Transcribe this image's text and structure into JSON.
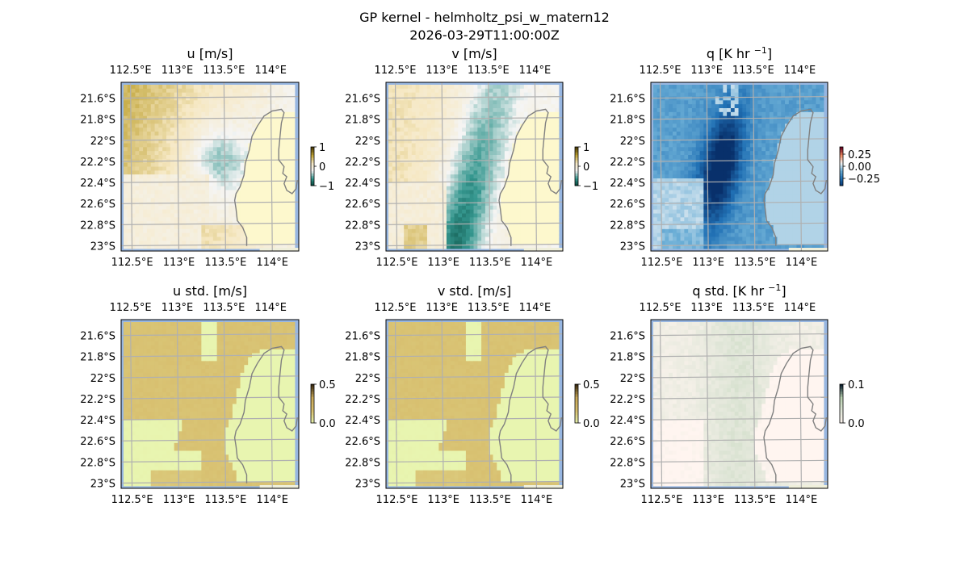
{
  "figure": {
    "title_line1": "GP kernel - helmholtz_psi_w_matern12",
    "title_line2": "2026-03-29T11:00:00Z"
  },
  "chart_data": [
    {
      "type": "heatmap",
      "id": "u",
      "title_main": "u [m/s]",
      "title_sup": "",
      "title_tail": "",
      "colormap": "diverging brown-white-teal",
      "colors": [
        "#003c30",
        "#35978f",
        "#f5f5f5",
        "#f6e8c3",
        "#bfa232",
        "#4a3b06"
      ],
      "vmin": -1,
      "vmax": 1,
      "colorbar_ticks": [
        1,
        0,
        -1
      ],
      "colorbar_tick_labels": [
        "1",
        "0",
        "−1"
      ],
      "x_tick_labels": [
        "112.5°E",
        "113°E",
        "113.5°E",
        "114°E"
      ],
      "y_tick_labels": [
        "21.6°S",
        "21.8°S",
        "22°S",
        "22.2°S",
        "22.4°S",
        "22.6°S",
        "22.8°S",
        "23°S"
      ],
      "xlim": [
        112.4,
        114.3
      ],
      "ylim": [
        -23.05,
        -21.45
      ]
    },
    {
      "type": "heatmap",
      "id": "v",
      "title_main": "v [m/s]",
      "title_sup": "",
      "title_tail": "",
      "colormap": "diverging brown-white-teal",
      "colors": [
        "#003c30",
        "#35978f",
        "#f5f5f5",
        "#f6e8c3",
        "#bfa232",
        "#4a3b06"
      ],
      "vmin": -1,
      "vmax": 1,
      "colorbar_ticks": [
        1,
        0,
        -1
      ],
      "colorbar_tick_labels": [
        "1",
        "0",
        "−1"
      ],
      "x_tick_labels": [
        "112.5°E",
        "113°E",
        "113.5°E",
        "114°E"
      ],
      "y_tick_labels": [
        "21.6°S",
        "21.8°S",
        "22°S",
        "22.2°S",
        "22.4°S",
        "22.6°S",
        "22.8°S",
        "23°S"
      ],
      "xlim": [
        112.4,
        114.3
      ],
      "ylim": [
        -23.05,
        -21.45
      ]
    },
    {
      "type": "heatmap",
      "id": "q",
      "title_main": "q [K hr ",
      "title_sup": "−1",
      "title_tail": "]",
      "colormap": "RdBu_r",
      "colors": [
        "#08306b",
        "#2171b5",
        "#6baed6",
        "#f7f7f7",
        "#ef8a62",
        "#67001f"
      ],
      "vmin": -0.4,
      "vmax": 0.4,
      "colorbar_ticks": [
        0.25,
        0.0,
        -0.25
      ],
      "colorbar_tick_labels": [
        "0.25",
        "0.00",
        "−0.25"
      ],
      "x_tick_labels": [
        "112.5°E",
        "113°E",
        "113.5°E",
        "114°E"
      ],
      "y_tick_labels": [
        "21.6°S",
        "21.8°S",
        "22°S",
        "22.2°S",
        "22.4°S",
        "22.6°S",
        "22.8°S",
        "23°S"
      ],
      "xlim": [
        112.4,
        114.3
      ],
      "ylim": [
        -23.05,
        -21.45
      ]
    },
    {
      "type": "heatmap",
      "id": "u_std",
      "title_main": "u std. [m/s]",
      "title_sup": "",
      "title_tail": "",
      "colormap": "sequential yellow-brown",
      "colors": [
        "#e8f5b0",
        "#d8c070",
        "#c8a858",
        "#3a2a10"
      ],
      "vmin": 0.0,
      "vmax": 0.5,
      "colorbar_ticks": [
        0.5,
        0.0
      ],
      "colorbar_tick_labels": [
        "0.5",
        "0.0"
      ],
      "x_tick_labels": [
        "112.5°E",
        "113°E",
        "113.5°E",
        "114°E"
      ],
      "y_tick_labels": [
        "21.6°S",
        "21.8°S",
        "22°S",
        "22.2°S",
        "22.4°S",
        "22.6°S",
        "22.8°S",
        "23°S"
      ],
      "xlim": [
        112.4,
        114.3
      ],
      "ylim": [
        -23.05,
        -21.45
      ]
    },
    {
      "type": "heatmap",
      "id": "v_std",
      "title_main": "v std. [m/s]",
      "title_sup": "",
      "title_tail": "",
      "colormap": "sequential yellow-brown",
      "colors": [
        "#e8f5b0",
        "#d8c070",
        "#c8a858",
        "#3a2a10"
      ],
      "vmin": 0.0,
      "vmax": 0.5,
      "colorbar_ticks": [
        0.5,
        0.0
      ],
      "colorbar_tick_labels": [
        "0.5",
        "0.0"
      ],
      "x_tick_labels": [
        "112.5°E",
        "113°E",
        "113.5°E",
        "114°E"
      ],
      "y_tick_labels": [
        "21.6°S",
        "21.8°S",
        "22°S",
        "22.2°S",
        "22.4°S",
        "22.6°S",
        "22.8°S",
        "23°S"
      ],
      "xlim": [
        112.4,
        114.3
      ],
      "ylim": [
        -23.05,
        -21.45
      ]
    },
    {
      "type": "heatmap",
      "id": "q_std",
      "title_main": "q std. [K hr ",
      "title_sup": "−1",
      "title_tail": "]",
      "colormap": "sequential pink-green",
      "colors": [
        "#fff5f0",
        "#e0e6d8",
        "#b8d0b0",
        "#0a2030"
      ],
      "vmin": 0.0,
      "vmax": 0.1,
      "colorbar_ticks": [
        0.1,
        0.0
      ],
      "colorbar_tick_labels": [
        "0.1",
        "0.0"
      ],
      "x_tick_labels": [
        "112.5°E",
        "113°E",
        "113.5°E",
        "114°E"
      ],
      "y_tick_labels": [
        "21.6°S",
        "21.8°S",
        "22°S",
        "22.2°S",
        "22.4°S",
        "22.6°S",
        "22.8°S",
        "23°S"
      ],
      "xlim": [
        112.4,
        114.3
      ],
      "ylim": [
        -23.05,
        -21.45
      ]
    }
  ],
  "style": {
    "ocean_color": "#97b6e1",
    "grid_color": "#b0b0b0",
    "coast_color": "#808080",
    "land_color": "#efefdb"
  }
}
